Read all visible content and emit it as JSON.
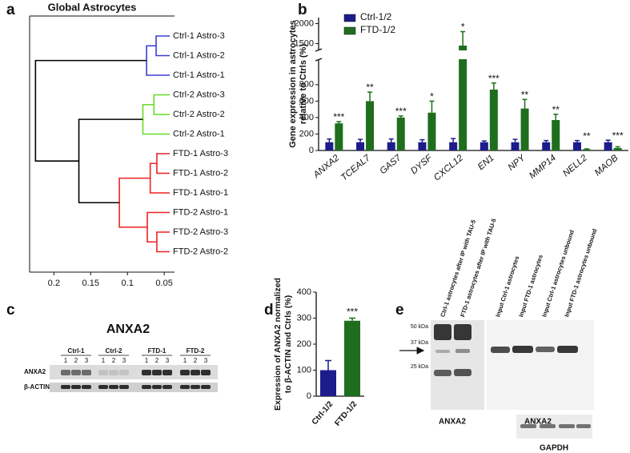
{
  "panel_letters": [
    "a",
    "b",
    "c",
    "d",
    "e"
  ],
  "dendrogram": {
    "title": "Global Astrocytes",
    "leaves": [
      "Ctrl-1 Astro-3",
      "Ctrl-1 Astro-2",
      "Ctrl-1 Astro-1",
      "Ctrl-2 Astro-3",
      "Ctrl-2 Astro-2",
      "Ctrl-2 Astro-1",
      "FTD-1 Astro-3",
      "FTD-1 Astro-2",
      "FTD-1 Astro-1",
      "FTD-2 Astro-1",
      "FTD-2 Astro-3",
      "FTD-2 Astro-2"
    ],
    "merges": [
      {
        "children": [
          0,
          1
        ],
        "height": 0.061,
        "color": "#3b3bd6"
      },
      {
        "children": [
          12,
          2
        ],
        "height": 0.074,
        "color": "#3b3bd6"
      },
      {
        "children": [
          3,
          4
        ],
        "height": 0.064,
        "color": "#66dd22"
      },
      {
        "children": [
          14,
          5
        ],
        "height": 0.079,
        "color": "#66dd22"
      },
      {
        "children": [
          6,
          7
        ],
        "height": 0.06,
        "color": "#ee2222"
      },
      {
        "children": [
          16,
          8
        ],
        "height": 0.069,
        "color": "#ee2222"
      },
      {
        "children": [
          10,
          11
        ],
        "height": 0.06,
        "color": "#ee2222"
      },
      {
        "children": [
          9,
          18
        ],
        "height": 0.073,
        "color": "#ee2222"
      },
      {
        "children": [
          17,
          19
        ],
        "height": 0.111,
        "color": "#ee2222"
      },
      {
        "children": [
          15,
          20
        ],
        "height": 0.166,
        "color": "#000000"
      },
      {
        "children": [
          13,
          21
        ],
        "height": 0.225,
        "color": "#000000"
      }
    ],
    "xlim": [
      0.233,
      0.036
    ],
    "xticks": [
      0.2,
      0.15,
      0.1,
      0.05
    ]
  },
  "chart_data": [
    {
      "type": "bar",
      "categories": [
        "ANXA2",
        "TCEAL7",
        "GAS7",
        "DYSF",
        "CXCL12",
        "EN1",
        "NPY",
        "MMP14",
        "NELL2",
        "MAOB"
      ],
      "series": [
        {
          "name": "Ctrl-1/2",
          "color": "#1c1c8c",
          "values": [
            100,
            100,
            100,
            100,
            100,
            100,
            100,
            100,
            100,
            100
          ],
          "errors": [
            40,
            35,
            40,
            30,
            45,
            15,
            35,
            20,
            20,
            25
          ]
        },
        {
          "name": "FTD-1/2",
          "color": "#1e6e1e",
          "values": [
            330,
            600,
            400,
            460,
            1450,
            740,
            510,
            370,
            15,
            30
          ],
          "errors": [
            20,
            110,
            20,
            140,
            350,
            80,
            110,
            70,
            5,
            15
          ]
        }
      ],
      "annotations": [
        "***",
        "**",
        "***",
        "*",
        "*",
        "***",
        "**",
        "**",
        "**",
        "***"
      ],
      "ylabel": [
        "Gene expression in astrocytes",
        "relative to Ctrls (%)"
      ],
      "ylim": [
        0,
        2150
      ],
      "axis_break": [
        1100,
        1350
      ],
      "yticks": [
        0,
        200,
        400,
        600,
        800,
        1500,
        2000
      ]
    },
    {
      "type": "bar",
      "categories": [
        "Ctrl-1/2",
        "FTD-1/2"
      ],
      "values": [
        100,
        290
      ],
      "errors": [
        37,
        10
      ],
      "colors": [
        "#1c1c8c",
        "#1e6e1e"
      ],
      "annotations": {
        "1": "***"
      },
      "ylabel": [
        "Expression of ANXA2 normalized",
        "to β-ACTIN and Ctrls (%)"
      ],
      "ylim": [
        0,
        400
      ],
      "yticks": [
        0,
        100,
        200,
        300,
        400
      ]
    }
  ],
  "blot_c": {
    "title": "ANXA2",
    "groups": [
      "Ctrl-1",
      "Ctrl-2",
      "FTD-1",
      "FTD-2"
    ],
    "lanes": [
      "1",
      "2",
      "3"
    ],
    "rows": [
      "ANXA2",
      "β-ACTIN"
    ]
  },
  "blot_e": {
    "lanes": [
      "Ctrl-1 astrocytes after IP with TAU-5",
      "FTD-1 astrocytes after IP with TAU-5",
      "Input Ctrl-1 astrocytes",
      "Input FTD-1 astrocytes",
      "Input Ctrl-1 astrocytes unbound",
      "Input FTD-1 astrocytes unbound"
    ],
    "markers": [
      "50 kDa",
      "37 kDa",
      "25 kDa"
    ],
    "captions": [
      "ANXA2",
      "ANXA2",
      "GAPDH"
    ]
  }
}
